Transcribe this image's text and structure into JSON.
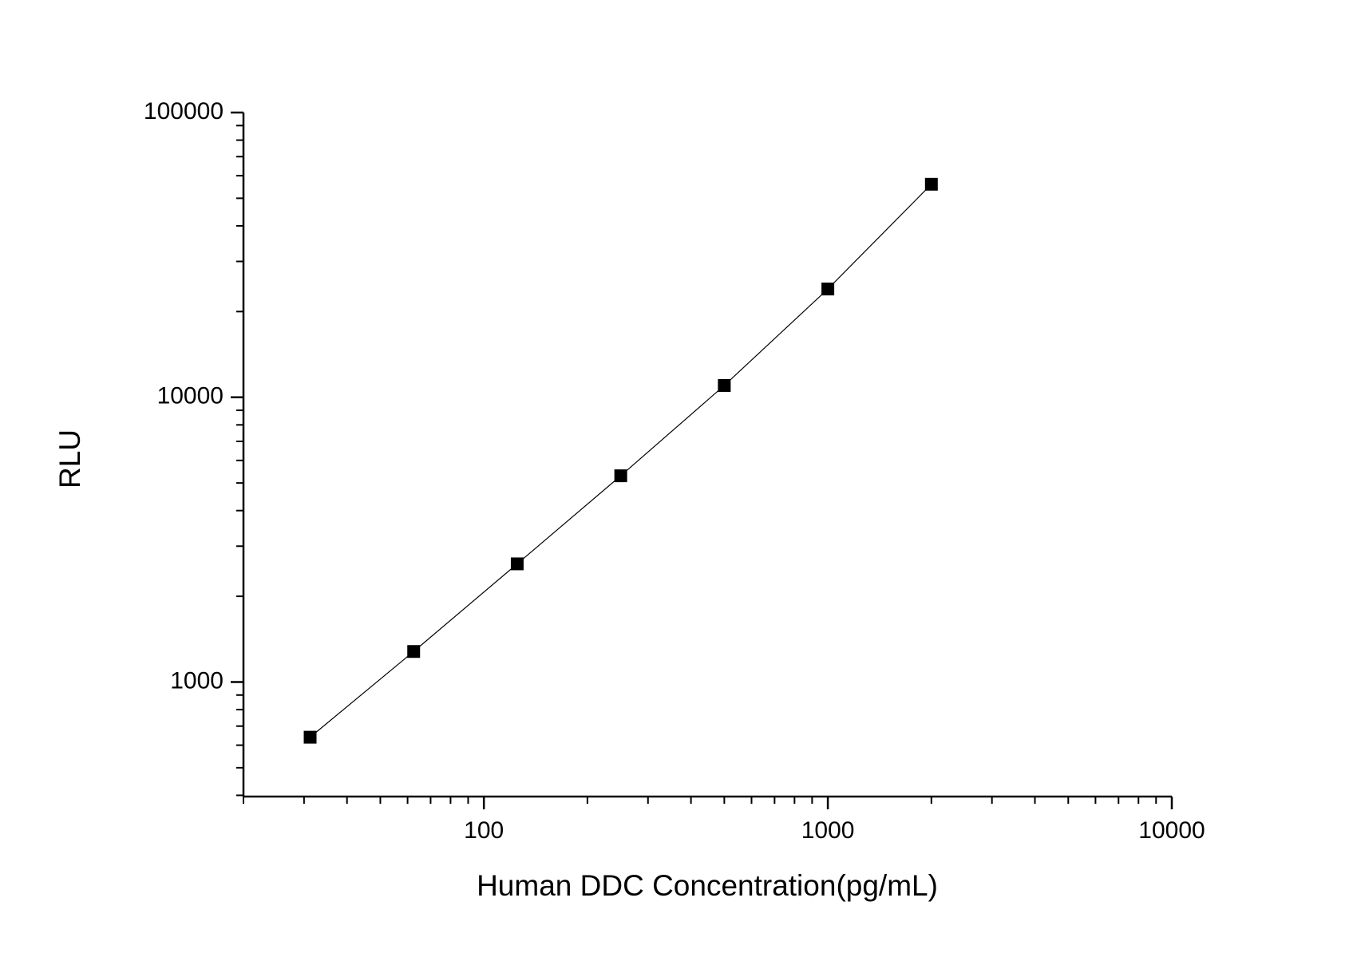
{
  "chart_data": {
    "type": "scatter",
    "x_label": "Human DDC Concentration(pg/mL)",
    "y_label": "RLU",
    "x": [
      31.25,
      62.5,
      125,
      250,
      500,
      1000,
      2000
    ],
    "series": [
      {
        "values": [
          640,
          1280,
          2600,
          5300,
          11000,
          24000,
          56000
        ],
        "color": "#000000"
      }
    ],
    "xscale": "log",
    "yscale": "log",
    "xlim": [
      20,
      10000
    ],
    "ylim": [
      396,
      100000
    ],
    "xticks": [
      100,
      1000,
      10000
    ],
    "yticks": [
      1000,
      10000,
      100000
    ],
    "connect_line": true
  }
}
